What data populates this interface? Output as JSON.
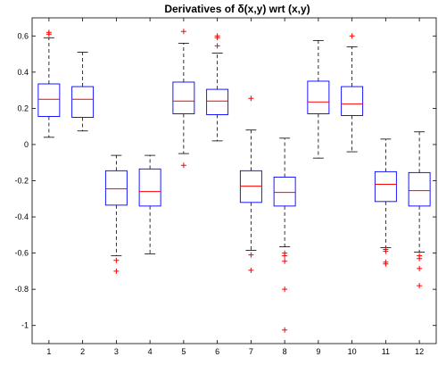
{
  "chart_data": {
    "type": "boxplot",
    "title": "Derivatives of δ(x,y) wrt (x,y)",
    "xlabel": "",
    "ylabel": "",
    "ylim": [
      -1.1,
      0.7
    ],
    "xlim": [
      0.5,
      12.5
    ],
    "categories": [
      "1",
      "2",
      "3",
      "4",
      "5",
      "6",
      "7",
      "8",
      "9",
      "10",
      "11",
      "12"
    ],
    "yticks": [
      0.6,
      0.4,
      0.2,
      0,
      -0.2,
      -0.4,
      -0.6,
      -0.8,
      -1
    ],
    "ytick_labels": [
      "0.6",
      "0.4",
      "0.2",
      "0",
      "-0.2",
      "-0.4",
      "-0.6",
      "-0.8",
      "-1"
    ],
    "grid": false,
    "box_color": "#0000ff",
    "median_color": "#ff0000",
    "whisker_color": "#000000",
    "outlier_color": "#ff0000",
    "boxes": [
      {
        "q1": 0.155,
        "median": 0.25,
        "q3": 0.335,
        "whisker_low": 0.04,
        "whisker_high": 0.59,
        "outliers": [
          0.61,
          0.62
        ]
      },
      {
        "q1": 0.15,
        "median": 0.25,
        "q3": 0.32,
        "whisker_low": 0.075,
        "whisker_high": 0.51,
        "outliers": []
      },
      {
        "q1": -0.335,
        "median": -0.245,
        "q3": -0.145,
        "whisker_low": -0.615,
        "whisker_high": -0.06,
        "outliers": [
          -0.64,
          -0.7
        ]
      },
      {
        "q1": -0.34,
        "median": -0.26,
        "q3": -0.135,
        "whisker_low": -0.605,
        "whisker_high": -0.06,
        "outliers": []
      },
      {
        "q1": 0.17,
        "median": 0.24,
        "q3": 0.345,
        "whisker_low": -0.05,
        "whisker_high": 0.56,
        "outliers": [
          0.625,
          -0.115
        ]
      },
      {
        "q1": 0.165,
        "median": 0.24,
        "q3": 0.305,
        "whisker_low": 0.02,
        "whisker_high": 0.505,
        "outliers": [
          0.6,
          0.59,
          0.545
        ]
      },
      {
        "q1": -0.32,
        "median": -0.23,
        "q3": -0.145,
        "whisker_low": -0.585,
        "whisker_high": 0.08,
        "outliers": [
          0.255,
          -0.61,
          -0.695
        ]
      },
      {
        "q1": -0.34,
        "median": -0.265,
        "q3": -0.18,
        "whisker_low": -0.565,
        "whisker_high": 0.035,
        "outliers": [
          -0.6,
          -0.615,
          -0.645,
          -0.8,
          -1.025
        ]
      },
      {
        "q1": 0.17,
        "median": 0.235,
        "q3": 0.35,
        "whisker_low": -0.075,
        "whisker_high": 0.575,
        "outliers": []
      },
      {
        "q1": 0.16,
        "median": 0.225,
        "q3": 0.32,
        "whisker_low": -0.04,
        "whisker_high": 0.54,
        "outliers": [
          0.6
        ]
      },
      {
        "q1": -0.315,
        "median": -0.22,
        "q3": -0.15,
        "whisker_low": -0.57,
        "whisker_high": 0.03,
        "outliers": [
          -0.58,
          -0.59,
          -0.65,
          -0.66
        ]
      },
      {
        "q1": -0.34,
        "median": -0.255,
        "q3": -0.155,
        "whisker_low": -0.595,
        "whisker_high": 0.07,
        "outliers": [
          -0.615,
          -0.63,
          -0.685,
          -0.78
        ]
      }
    ]
  }
}
